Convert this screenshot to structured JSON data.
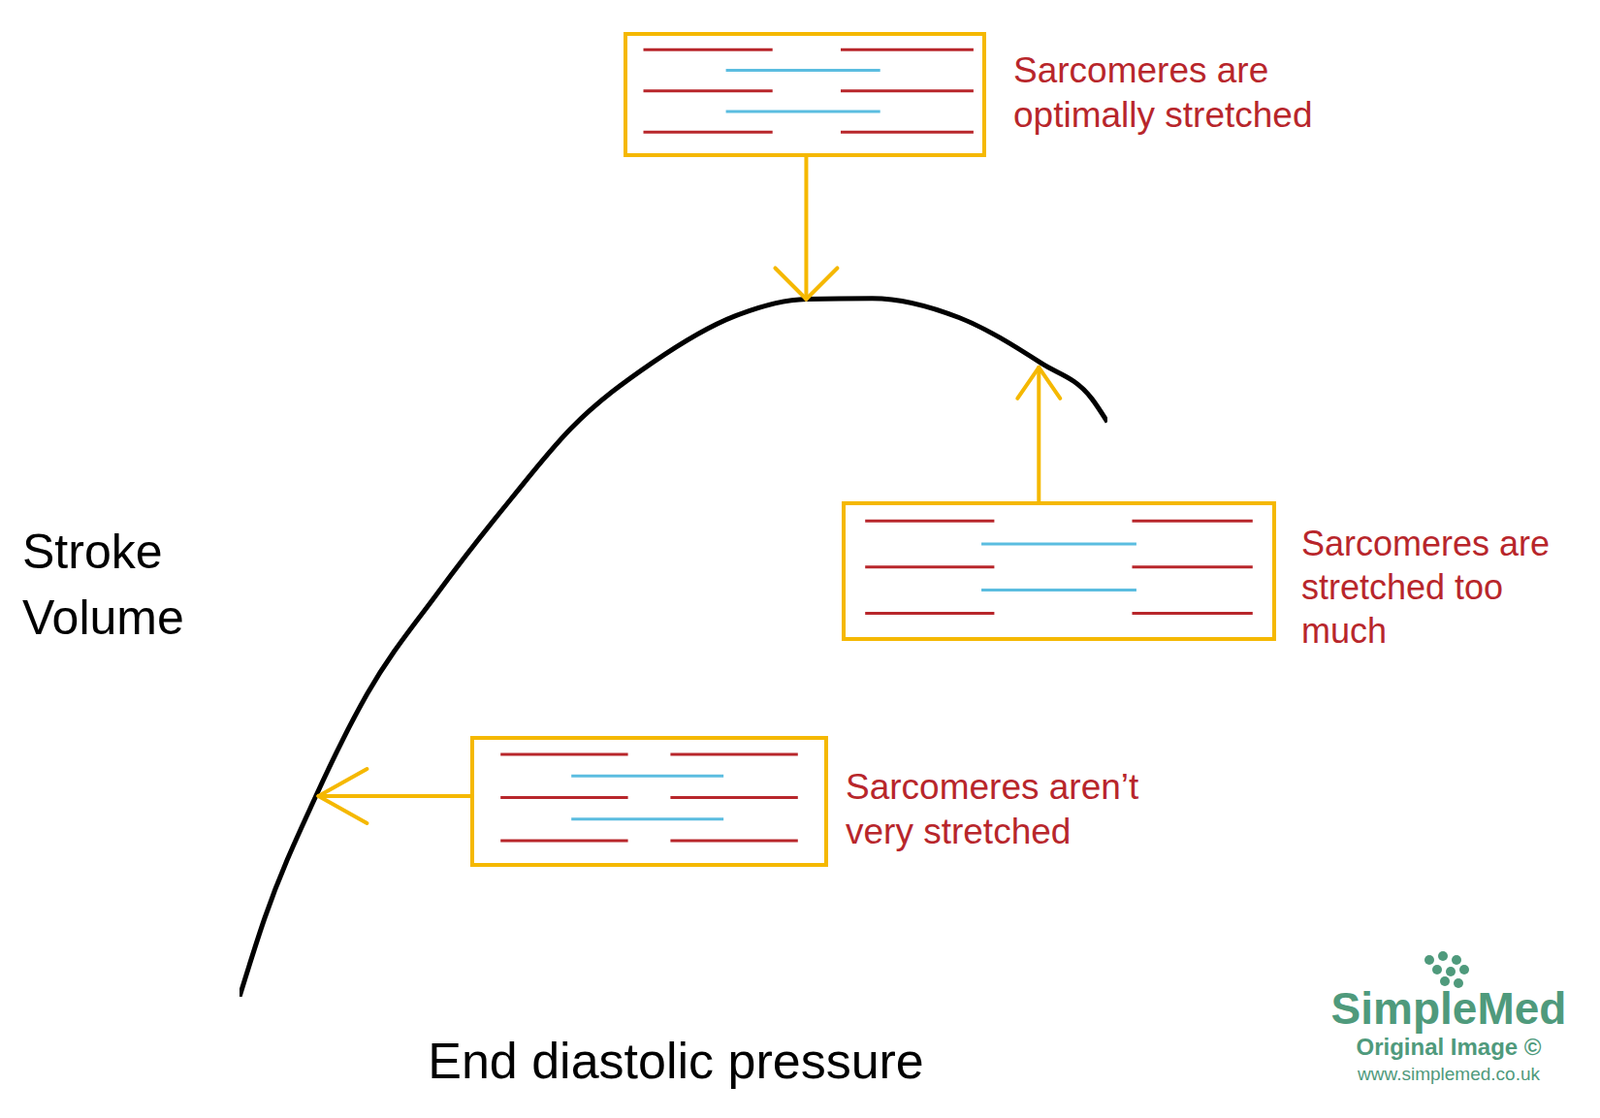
{
  "chart_data": {
    "type": "line",
    "x_label": "End diastolic pressure",
    "y_label": "Stroke Volume",
    "x": [
      0,
      2.9,
      8.8,
      14.7,
      22.9,
      31.2,
      38.2,
      47.6,
      57.1,
      65.3,
      72.9,
      82.9,
      92.4,
      98.2,
      100
    ],
    "values": [
      0,
      9.8,
      25.0,
      37.7,
      50.4,
      61.9,
      70.8,
      79.0,
      84.8,
      86.9,
      87.0,
      84.6,
      78.9,
      74.5,
      71.6
    ],
    "color": "#000000",
    "xlim": [
      0,
      100
    ],
    "ylim": [
      0,
      100
    ],
    "tick_labels": false,
    "grid": false,
    "annotations": [
      {
        "text": [
          "Sarcomeres are",
          "optimally stretched"
        ],
        "x": 65.3,
        "y": 86.9
      },
      {
        "text": [
          "Sarcomeres are",
          "stretched too",
          "much"
        ],
        "x": 92.1,
        "y": 78.4
      },
      {
        "text": [
          "Sarcomeres aren’t",
          "very stretched"
        ],
        "x": 9.1,
        "y": 25.0
      }
    ]
  },
  "watermark": [
    "SimpleMed",
    "Original Image ©",
    "www.simplemed.co.uk"
  ]
}
